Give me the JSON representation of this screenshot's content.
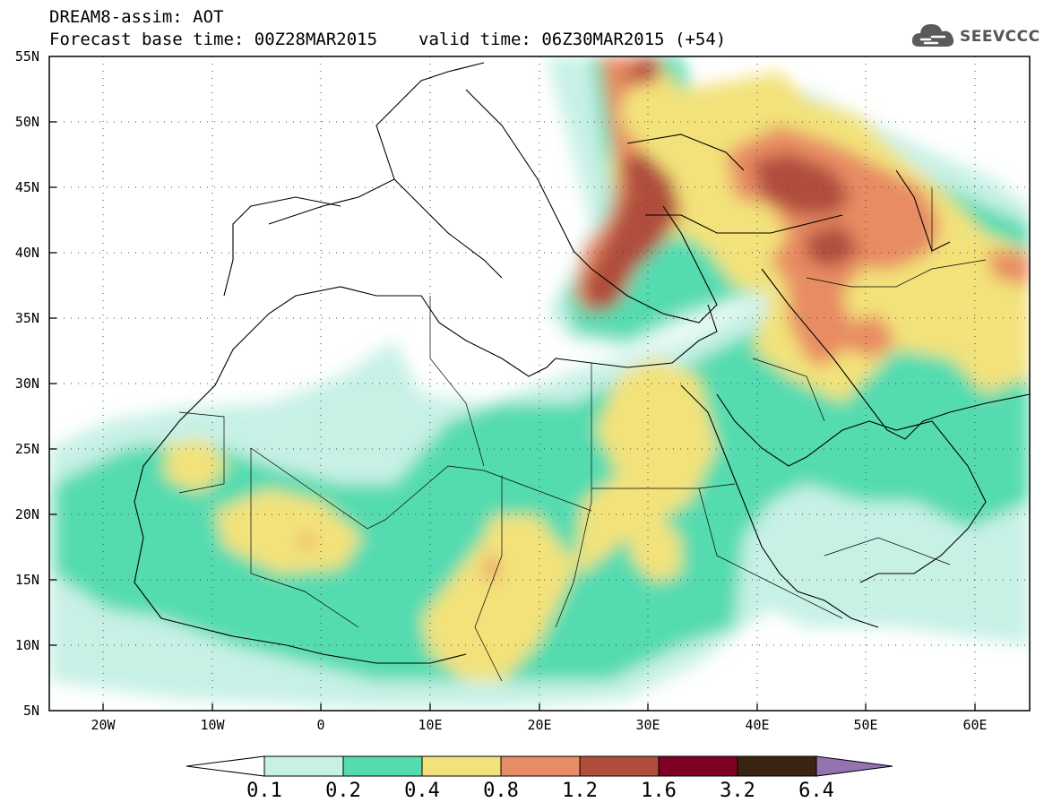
{
  "title": {
    "line1": "DREAM8-assim: AOT",
    "base": "Forecast base time: 00Z28MAR2015",
    "valid": "valid time: 06Z30MAR2015 (+54)"
  },
  "logo": {
    "text": "SEEVCCC",
    "icon": "cloud-icon",
    "color": "#555555"
  },
  "map": {
    "region": "North Africa, Mediterranean and Middle East",
    "lon_range": [
      -25,
      65
    ],
    "lat_range": [
      5,
      55
    ],
    "lat_labels": [
      "55N",
      "50N",
      "45N",
      "40N",
      "35N",
      "30N",
      "25N",
      "20N",
      "15N",
      "10N",
      "5N"
    ],
    "lon_labels": [
      "20W",
      "10W",
      "0",
      "10E",
      "20E",
      "30E",
      "40E",
      "50E",
      "60E"
    ],
    "grid": "dotted"
  },
  "legend": {
    "levels": [
      "0.1",
      "0.2",
      "0.4",
      "0.8",
      "1.2",
      "1.6",
      "3.2",
      "6.4"
    ],
    "colors": [
      "#ffffff",
      "#c8f1e6",
      "#55dbb0",
      "#f3e27a",
      "#e88c63",
      "#b04e3c",
      "#800026",
      "#3b2512",
      "#9473b0"
    ]
  }
}
